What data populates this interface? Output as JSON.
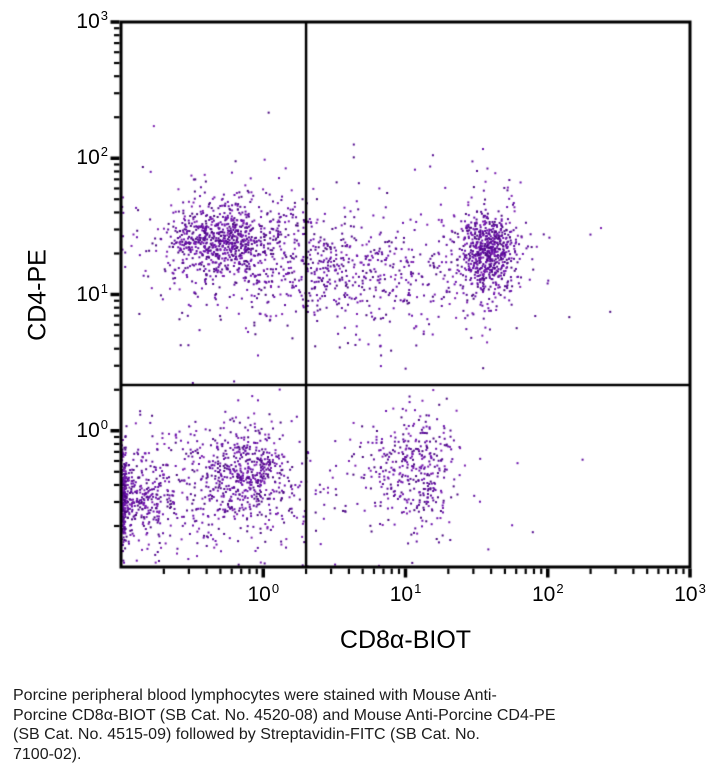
{
  "caption": {
    "lines": [
      "Porcine peripheral blood lymphocytes were stained with Mouse Anti-",
      "Porcine CD8α-BIOT (SB Cat. No. 4520-08) and Mouse Anti-Porcine CD4-PE",
      "(SB Cat. No. 4515-09) followed by Streptavidin-FITC (SB Cat. No.",
      "7100-02)."
    ]
  },
  "chart_data": {
    "type": "scatter",
    "subtype": "flow-cytometry-quadrant-dot-plot",
    "title": "",
    "xlabel": "CD8α-BIOT",
    "ylabel": "CD4-PE",
    "x_scale": "log",
    "y_scale": "log",
    "x_range": [
      0.1,
      1000
    ],
    "y_range": [
      0.1,
      1000
    ],
    "grid": false,
    "legend": "none",
    "x_ticks": [
      {
        "base": "10",
        "exp": "0",
        "value": 1
      },
      {
        "base": "10",
        "exp": "1",
        "value": 10
      },
      {
        "base": "10",
        "exp": "2",
        "value": 100
      },
      {
        "base": "10",
        "exp": "3",
        "value": 1000
      }
    ],
    "y_ticks": [
      {
        "base": "10",
        "exp": "3",
        "value": 1000
      },
      {
        "base": "10",
        "exp": "2",
        "value": 100
      },
      {
        "base": "10",
        "exp": "1",
        "value": 10
      },
      {
        "base": "10",
        "exp": "0",
        "value": 1
      }
    ],
    "minor_tick_multiples": [
      2,
      3,
      4,
      5,
      6,
      7,
      8,
      9
    ],
    "quadrant_gates": {
      "x_value": 2.0,
      "y_value": 2.17
    },
    "frame_color": "#000000",
    "gate_color": "#000000",
    "dot_colors": [
      "#530a8f",
      "#5e0d9e",
      "#6a11ad",
      "#49087e",
      "#7b1fb0"
    ],
    "dot_size": 2,
    "seed": 20240515,
    "clusters": [
      {
        "name": "CD4+ CD8- dense core (upper left)",
        "cx": -0.28,
        "cy": 1.4,
        "sx": 0.2,
        "sy": 0.12,
        "n": 550
      },
      {
        "name": "CD4+ CD8- halo",
        "cx": -0.22,
        "cy": 1.35,
        "sx": 0.34,
        "sy": 0.25,
        "n": 380
      },
      {
        "name": "CD4+ mid band",
        "cx": 0.55,
        "cy": 1.22,
        "sx": 0.42,
        "sy": 0.2,
        "n": 400
      },
      {
        "name": "CD4+ mid band lower tail",
        "cx": 0.72,
        "cy": 0.95,
        "sx": 0.42,
        "sy": 0.18,
        "n": 110
      },
      {
        "name": "CD4+ CD8+ dense core (upper right)",
        "cx": 1.585,
        "cy": 1.3,
        "sx": 0.095,
        "sy": 0.15,
        "n": 520
      },
      {
        "name": "CD4+ CD8+ halo",
        "cx": 1.53,
        "cy": 1.28,
        "sx": 0.19,
        "sy": 0.26,
        "n": 210
      },
      {
        "name": "upper sparse background",
        "cx": 0.5,
        "cy": 1.4,
        "sx": 0.85,
        "sy": 0.33,
        "n": 80
      },
      {
        "name": "CD4- CD8- axis pileup (lower left)",
        "cx": -0.93,
        "cy": -0.5,
        "sx": 0.16,
        "sy": 0.17,
        "n": 420
      },
      {
        "name": "CD4- CD8- main (lower left)",
        "cx": -0.12,
        "cy": -0.29,
        "sx": 0.18,
        "sy": 0.17,
        "n": 460
      },
      {
        "name": "CD4- CD8- bridge",
        "cx": -0.5,
        "cy": -0.44,
        "sx": 0.4,
        "sy": 0.26,
        "n": 300
      },
      {
        "name": "CD4- CD8+ cluster (lower right)",
        "cx": 1.07,
        "cy": -0.28,
        "sx": 0.16,
        "sy": 0.21,
        "n": 290
      },
      {
        "name": "CD4- CD8+ halo",
        "cx": 1.0,
        "cy": -0.35,
        "sx": 0.3,
        "sy": 0.28,
        "n": 80
      },
      {
        "name": "lower sparse background",
        "cx": 0.3,
        "cy": -0.5,
        "sx": 0.6,
        "sy": 0.3,
        "n": 90
      }
    ]
  }
}
